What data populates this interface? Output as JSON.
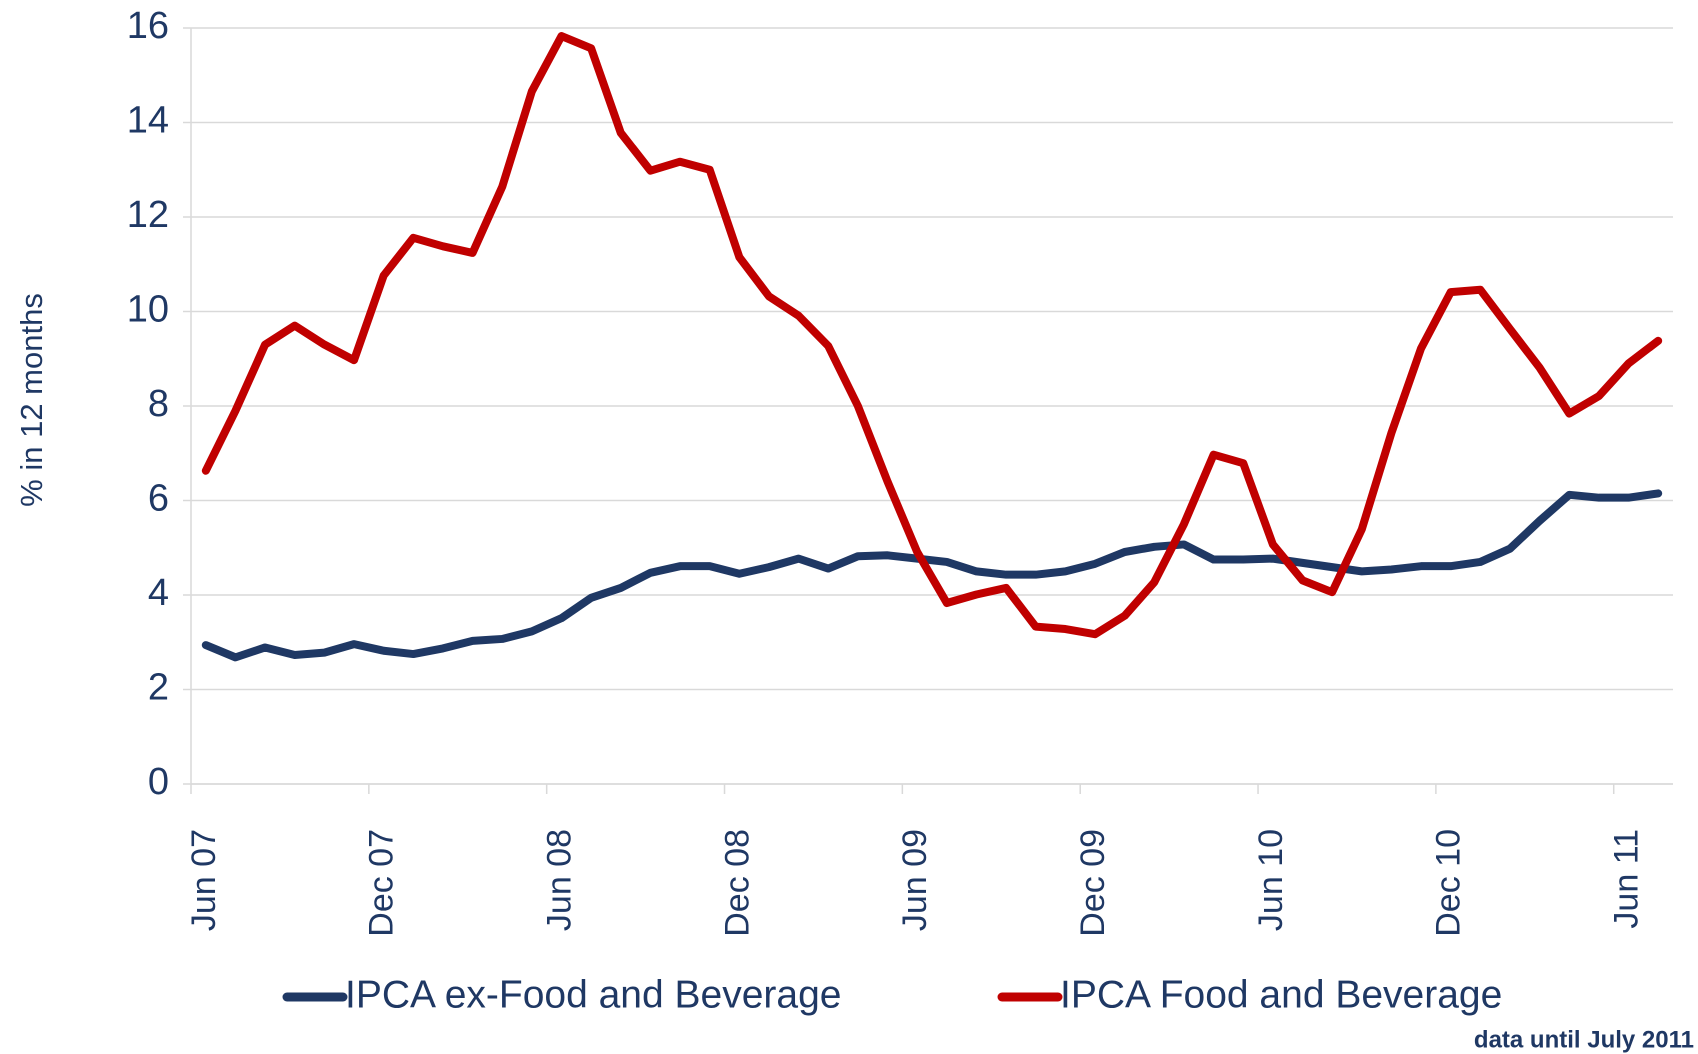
{
  "chart_data": {
    "type": "line",
    "ylabel": "% in 12 months",
    "note": "data until July 2011",
    "categories": [
      "Jun 07",
      null,
      null,
      null,
      null,
      null,
      "Dec 07",
      null,
      null,
      null,
      null,
      null,
      "Jun 08",
      null,
      null,
      null,
      null,
      null,
      "Dec 08",
      null,
      null,
      null,
      null,
      null,
      "Jun 09",
      null,
      null,
      null,
      null,
      null,
      "Dec 09",
      null,
      null,
      null,
      null,
      null,
      "Jun 10",
      null,
      null,
      null,
      null,
      null,
      "Dec 10",
      null,
      null,
      null,
      null,
      null,
      "Jun 11",
      null
    ],
    "series": [
      {
        "name": "IPCA ex-Food and Beverage",
        "color": "#1f3864",
        "values": [
          2.94,
          2.68,
          2.89,
          2.73,
          2.78,
          2.96,
          2.82,
          2.75,
          2.87,
          3.03,
          3.07,
          3.23,
          3.51,
          3.94,
          4.15,
          4.47,
          4.61,
          4.61,
          4.45,
          4.59,
          4.77,
          4.56,
          4.82,
          4.84,
          4.77,
          4.7,
          4.5,
          4.43,
          4.43,
          4.5,
          4.66,
          4.91,
          5.02,
          5.07,
          4.75,
          4.75,
          4.77,
          4.68,
          4.59,
          4.5,
          4.54,
          4.61,
          4.61,
          4.7,
          4.98,
          5.57,
          6.12,
          6.06,
          6.06,
          6.15
        ]
      },
      {
        "name": "IPCA Food and Beverage",
        "color": "#c00000",
        "values": [
          6.63,
          7.9,
          9.3,
          9.7,
          9.3,
          8.97,
          10.76,
          11.56,
          11.38,
          11.24,
          12.64,
          14.66,
          15.83,
          15.57,
          13.78,
          12.98,
          13.17,
          13.0,
          11.15,
          10.32,
          9.91,
          9.27,
          8.0,
          6.4,
          4.91,
          3.83,
          4.01,
          4.15,
          3.33,
          3.28,
          3.17,
          3.56,
          4.27,
          5.5,
          6.97,
          6.79,
          5.07,
          4.31,
          4.06,
          5.39,
          7.43,
          9.22,
          10.41,
          10.46,
          9.63,
          8.81,
          7.84,
          8.21,
          8.9,
          9.38
        ]
      }
    ],
    "ylim": [
      0,
      16
    ],
    "yticks": [
      0,
      2,
      4,
      6,
      8,
      10,
      12,
      14,
      16
    ],
    "grid": true,
    "legend": "bottom"
  }
}
